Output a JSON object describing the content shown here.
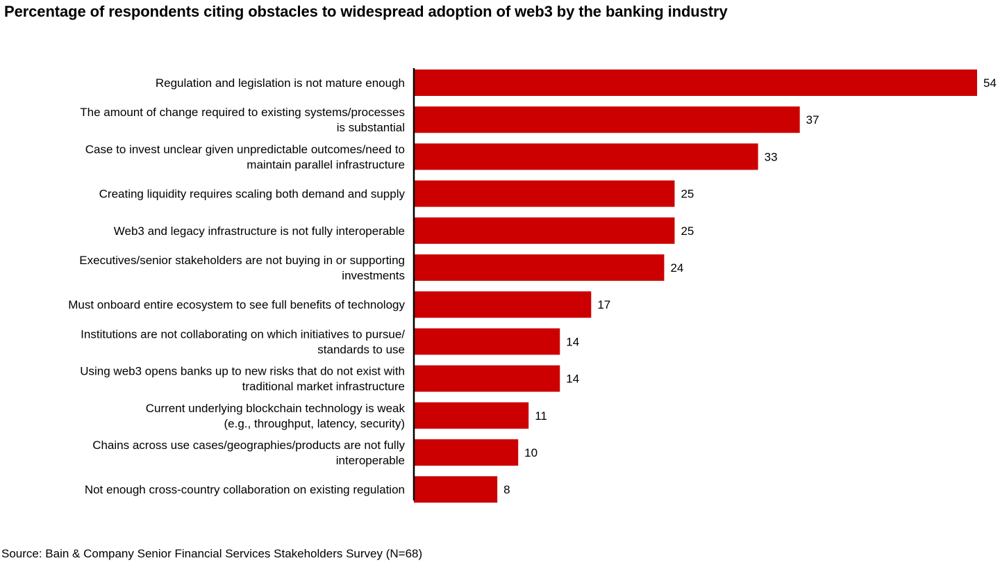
{
  "title": "Percentage of respondents citing obstacles to widespread adoption of web3 by the banking industry",
  "source": "Source: Bain & Company Senior Financial Services Stakeholders Survey (N=68)",
  "colors": {
    "bar": "#cc0000",
    "axis": "#000000",
    "text": "#000000"
  },
  "chart_data": {
    "type": "bar",
    "orientation": "horizontal",
    "title": "Percentage of respondents citing obstacles to widespread adoption of web3 by the banking industry",
    "xlabel": "",
    "ylabel": "",
    "grid": false,
    "categories": [
      [
        "Regulation and legislation is not mature enough"
      ],
      [
        "The amount of change required to existing systems/processes",
        "is substantial"
      ],
      [
        "Case to invest unclear given unpredictable outcomes/need to",
        "maintain parallel infrastructure"
      ],
      [
        "Creating liquidity requires scaling both demand and supply"
      ],
      [
        "Web3 and legacy infrastructure is not fully interoperable"
      ],
      [
        "Executives/senior stakeholders are not buying in or supporting",
        "investments"
      ],
      [
        "Must onboard entire ecosystem to see full benefits of technology"
      ],
      [
        "Institutions are not collaborating on which initiatives to pursue/",
        "standards to use"
      ],
      [
        "Using web3 opens banks up to new risks that do not exist with",
        "traditional market infrastructure"
      ],
      [
        "Current underlying blockchain technology is weak",
        "(e.g., throughput, latency, security)"
      ],
      [
        "Chains across use cases/geographies/products are not fully",
        "interoperable"
      ],
      [
        "Not enough cross-country collaboration on existing regulation"
      ]
    ],
    "values": [
      54,
      37,
      33,
      25,
      25,
      24,
      17,
      14,
      14,
      11,
      10,
      8
    ],
    "xlim": [
      0,
      54
    ]
  }
}
